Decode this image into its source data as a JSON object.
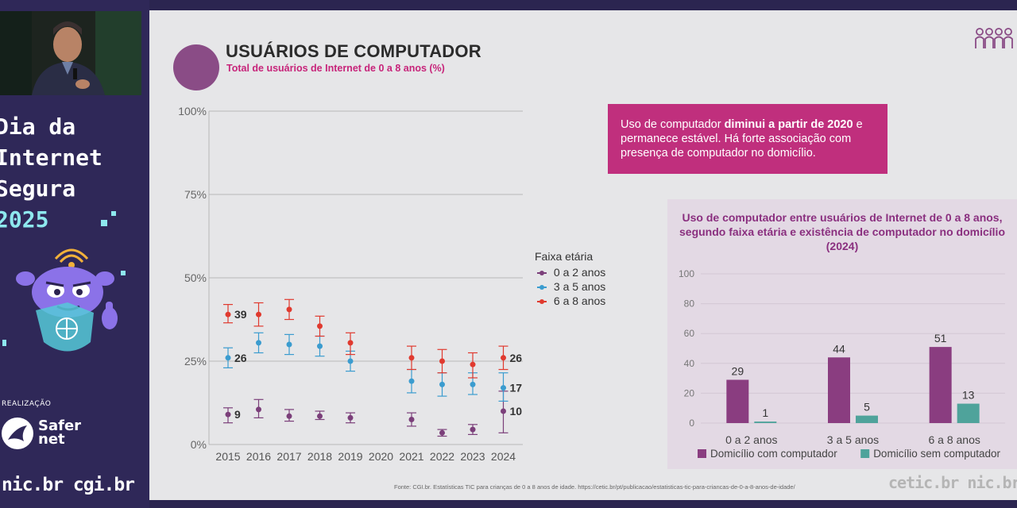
{
  "event": {
    "title_lines": [
      "Dia da",
      "Internet",
      "Segura"
    ],
    "year": "2025",
    "realizacao": "REALIZAÇÃO",
    "safernet": [
      "Safer",
      "net"
    ],
    "sponsors": "nic.br cgi.br"
  },
  "slide": {
    "title": "USUÁRIOS DE COMPUTADOR",
    "subtitle": "Total de usuários de Internet de 0 a 8 anos (%)",
    "callout": {
      "text_before": "Uso de computador ",
      "text_bold": "diminui a partir de 2020",
      "text_after": " e permanece estável. Há forte associação com presença de computador no domicílio."
    },
    "source": "Fonte: CGI.br. Estatísticas TIC para crianças de 0 a 8 anos de idade. https://cetic.br/pt/publicacao/estatisticas-tic-para-criancas-de-0-a-8-anos-de-idade/",
    "footer_logos": "cetic.br nic.br cgi.br",
    "icon": "family-icon"
  },
  "colors": {
    "series_0_2": "#7b3f7a",
    "series_3_5": "#3b9ccf",
    "series_6_8": "#e03a2f",
    "bar_com": "#8a3d80",
    "bar_sem": "#4fa39b",
    "magenta": "#c02f7d"
  },
  "chart_data": [
    {
      "type": "scatter",
      "title": "",
      "xlabel": "",
      "ylabel": "",
      "x": [
        "2015",
        "2016",
        "2017",
        "2018",
        "2019",
        "2020",
        "2021",
        "2022",
        "2023",
        "2024"
      ],
      "y_ticks": [
        "0%",
        "25%",
        "50%",
        "75%",
        "100%"
      ],
      "ylim": [
        0,
        100
      ],
      "grid": true,
      "legend_title": "Faixa etária",
      "legend_position": "right",
      "series": [
        {
          "name": "0 a 2 anos",
          "values": [
            9,
            10.5,
            8.5,
            8.5,
            8,
            null,
            7.5,
            3.5,
            4.5,
            10
          ],
          "error_low": [
            6.5,
            8,
            7,
            7.5,
            6.5,
            null,
            5.5,
            2.5,
            3,
            3.5
          ],
          "error_high": [
            11,
            13.5,
            10.5,
            10,
            9.5,
            null,
            9.5,
            4.5,
            6,
            16
          ],
          "end_labels": {
            "2015": "9",
            "2024": "10"
          }
        },
        {
          "name": "3 a 5 anos",
          "values": [
            26,
            30.5,
            30,
            29.5,
            25,
            null,
            19,
            18,
            18,
            17
          ],
          "error_low": [
            23,
            27.5,
            27,
            26.5,
            22,
            null,
            15.5,
            14.5,
            15,
            13
          ],
          "error_high": [
            29,
            33.5,
            33,
            32.5,
            28,
            null,
            22.5,
            21.5,
            21.5,
            21.5
          ],
          "end_labels": {
            "2015": "26",
            "2024": "17"
          }
        },
        {
          "name": "6 a 8 anos",
          "values": [
            39,
            39,
            40.5,
            35.5,
            30.5,
            null,
            26,
            25,
            24,
            26
          ],
          "error_low": [
            36.5,
            35.5,
            37.5,
            32.5,
            27,
            null,
            22.5,
            21.5,
            20,
            22.5
          ],
          "error_high": [
            42,
            42.5,
            43.5,
            38.5,
            33.5,
            null,
            29.5,
            28.5,
            27.5,
            29.5
          ],
          "end_labels": {
            "2015": "39",
            "2024": "26"
          }
        }
      ]
    },
    {
      "type": "bar",
      "title": "Uso de computador entre usuários de Internet de 0 a 8 anos, segundo faixa etária e existência de computador no domicílio (2024)",
      "categories": [
        "0 a 2 anos",
        "3 a 5 anos",
        "6 a 8 anos"
      ],
      "ylim": [
        0,
        100
      ],
      "y_ticks": [
        "0",
        "20",
        "40",
        "60",
        "80",
        "100"
      ],
      "legend_position": "bottom",
      "series": [
        {
          "name": "Domicílio com computador",
          "values": [
            29,
            44,
            51
          ]
        },
        {
          "name": "Domicílio sem computador",
          "values": [
            1,
            5,
            13
          ]
        }
      ]
    }
  ]
}
